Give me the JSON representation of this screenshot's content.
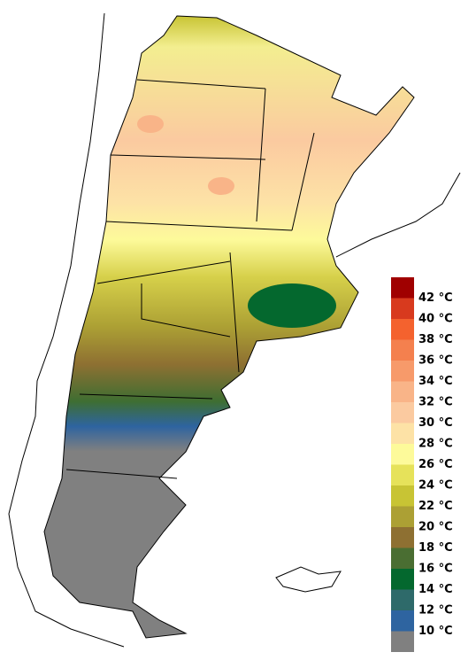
{
  "legend": {
    "items": [
      {
        "label": "42 °C",
        "color": "#a00000"
      },
      {
        "label": "40 °C",
        "color": "#d83a1e"
      },
      {
        "label": "38 °C",
        "color": "#f4622e"
      },
      {
        "label": "36 °C",
        "color": "#f4804e"
      },
      {
        "label": "34 °C",
        "color": "#f79a6a"
      },
      {
        "label": "32 °C",
        "color": "#f9b488"
      },
      {
        "label": "30 °C",
        "color": "#fbcaa0"
      },
      {
        "label": "28 °C",
        "color": "#fde2a6"
      },
      {
        "label": "26 °C",
        "color": "#fdfa9a"
      },
      {
        "label": "24 °C",
        "color": "#e6e25a"
      },
      {
        "label": "22 °C",
        "color": "#c8c434"
      },
      {
        "label": "20 °C",
        "color": "#aca034"
      },
      {
        "label": "18 °C",
        "color": "#8e7032"
      },
      {
        "label": "16 °C",
        "color": "#4a6e32"
      },
      {
        "label": "14 °C",
        "color": "#04682e"
      },
      {
        "label": "12 °C",
        "color": "#2e6a6a"
      },
      {
        "label": "10 °C",
        "color": "#2e64a0"
      }
    ],
    "below_color": "#808080"
  }
}
